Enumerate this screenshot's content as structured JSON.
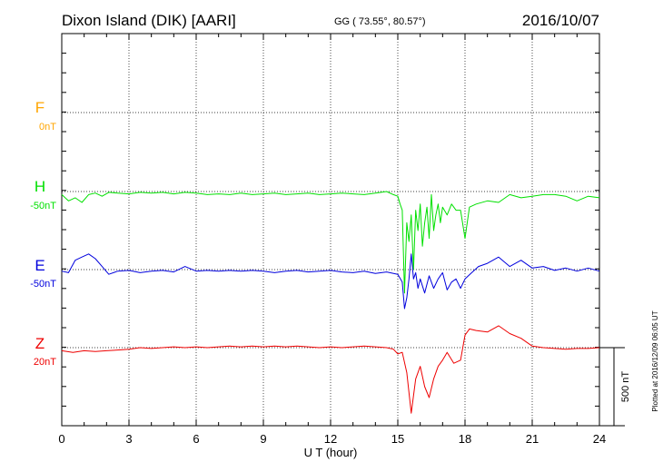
{
  "header": {
    "station": "Dixon Island (DIK)  [AARI]",
    "coords": "GG ( 73.55°,  80.57°)",
    "date": "2016/10/07"
  },
  "footer": {
    "plotted": "Plotted at 2016/12/09 06:05 UT",
    "scale_label": "500 nT"
  },
  "chart_data": {
    "type": "line",
    "xlabel": "U T (hour)",
    "xlim": [
      0,
      24
    ],
    "xticks": [
      0,
      3,
      6,
      9,
      12,
      15,
      18,
      21,
      24
    ],
    "grid": true,
    "scale_bar_nT": 500,
    "series": [
      {
        "name": "F",
        "offset_label": "0nT",
        "color": "#ffa500",
        "x": [],
        "y": []
      },
      {
        "name": "H",
        "offset_label": "-50nT",
        "color": "#00e000",
        "x": [
          0,
          0.3,
          0.6,
          0.9,
          1.2,
          1.5,
          1.8,
          2.1,
          2.5,
          3,
          3.5,
          4,
          4.5,
          5,
          5.5,
          6,
          6.5,
          7,
          7.5,
          8,
          8.5,
          9,
          9.5,
          10,
          10.5,
          11,
          11.5,
          12,
          12.5,
          13,
          13.5,
          14,
          14.5,
          14.8,
          15,
          15.1,
          15.2,
          15.3,
          15.4,
          15.5,
          15.6,
          15.7,
          15.8,
          15.9,
          16,
          16.1,
          16.2,
          16.3,
          16.4,
          16.5,
          16.6,
          16.7,
          16.8,
          16.9,
          17,
          17.2,
          17.4,
          17.6,
          17.8,
          18,
          18.2,
          18.5,
          19,
          19.5,
          20,
          20.5,
          21,
          21.5,
          22,
          22.5,
          23,
          23.5,
          24
        ],
        "y": [
          -20,
          -60,
          -40,
          -70,
          -20,
          -10,
          -30,
          -5,
          -10,
          -15,
          -5,
          -10,
          -5,
          -15,
          -5,
          -10,
          -20,
          -15,
          -20,
          -10,
          -20,
          -15,
          -10,
          -20,
          -15,
          -10,
          -20,
          -15,
          -10,
          -15,
          -20,
          -10,
          0,
          -20,
          -30,
          -80,
          -120,
          -650,
          -200,
          -320,
          -150,
          -500,
          -120,
          -250,
          -80,
          -350,
          -200,
          -100,
          -300,
          -20,
          -250,
          -150,
          -80,
          -200,
          -100,
          -150,
          -80,
          -120,
          -120,
          -300,
          -100,
          -80,
          -60,
          -70,
          -20,
          -40,
          -30,
          -20,
          -20,
          -30,
          -60,
          -30,
          -40
        ]
      },
      {
        "name": "E",
        "offset_label": "-50nT",
        "color": "#0000dd",
        "x": [
          0,
          0.3,
          0.6,
          0.9,
          1.2,
          1.5,
          1.8,
          2.1,
          2.5,
          3,
          3.5,
          4,
          4.5,
          5,
          5.5,
          6,
          6.5,
          7,
          7.5,
          8,
          8.5,
          9,
          9.5,
          10,
          10.5,
          11,
          11.5,
          12,
          12.5,
          13,
          13.5,
          14,
          14.5,
          15,
          15.2,
          15.3,
          15.4,
          15.5,
          15.6,
          15.7,
          15.8,
          15.9,
          16,
          16.2,
          16.4,
          16.6,
          16.8,
          17,
          17.2,
          17.4,
          17.6,
          17.8,
          18,
          18.3,
          18.6,
          19,
          19.5,
          20,
          20.5,
          21,
          21.5,
          22,
          22.5,
          23,
          23.5,
          24
        ],
        "y": [
          -10,
          -20,
          60,
          80,
          100,
          70,
          20,
          -30,
          -10,
          -5,
          -20,
          -10,
          -5,
          -15,
          20,
          -10,
          -5,
          -10,
          -5,
          -10,
          -5,
          -10,
          -20,
          -10,
          -5,
          -15,
          -10,
          -5,
          -15,
          -20,
          -10,
          -25,
          -15,
          -30,
          -80,
          -250,
          -180,
          -60,
          100,
          -60,
          -20,
          -120,
          -60,
          -150,
          -40,
          -120,
          -60,
          -20,
          -130,
          -80,
          -60,
          -120,
          -60,
          -20,
          20,
          40,
          80,
          20,
          60,
          10,
          20,
          -5,
          10,
          -10,
          10,
          -10
        ]
      },
      {
        "name": "Z",
        "offset_label": "20nT",
        "color": "#ee0000",
        "x": [
          0,
          0.5,
          1,
          1.5,
          2,
          2.5,
          3,
          3.5,
          4,
          4.5,
          5,
          5.5,
          6,
          6.5,
          7,
          7.5,
          8,
          8.5,
          9,
          9.5,
          10,
          10.5,
          11,
          11.5,
          12,
          12.5,
          13,
          13.5,
          14,
          14.5,
          14.8,
          15,
          15.2,
          15.4,
          15.6,
          15.8,
          16,
          16.2,
          16.4,
          16.6,
          16.8,
          17,
          17.2,
          17.5,
          17.8,
          18,
          18.2,
          18.5,
          19,
          19.5,
          20,
          20.5,
          21,
          21.5,
          22,
          22.5,
          23,
          23.5,
          24
        ],
        "y": [
          -20,
          -30,
          -20,
          -25,
          -20,
          -15,
          -10,
          0,
          -5,
          0,
          5,
          0,
          5,
          0,
          5,
          10,
          5,
          10,
          5,
          10,
          5,
          10,
          5,
          0,
          5,
          0,
          5,
          10,
          5,
          0,
          -10,
          -40,
          -30,
          -160,
          -420,
          -200,
          -120,
          -250,
          -320,
          -200,
          -120,
          -80,
          -30,
          -100,
          -80,
          80,
          120,
          110,
          100,
          140,
          90,
          60,
          10,
          0,
          -5,
          -10,
          -5,
          -5,
          0
        ]
      }
    ]
  }
}
